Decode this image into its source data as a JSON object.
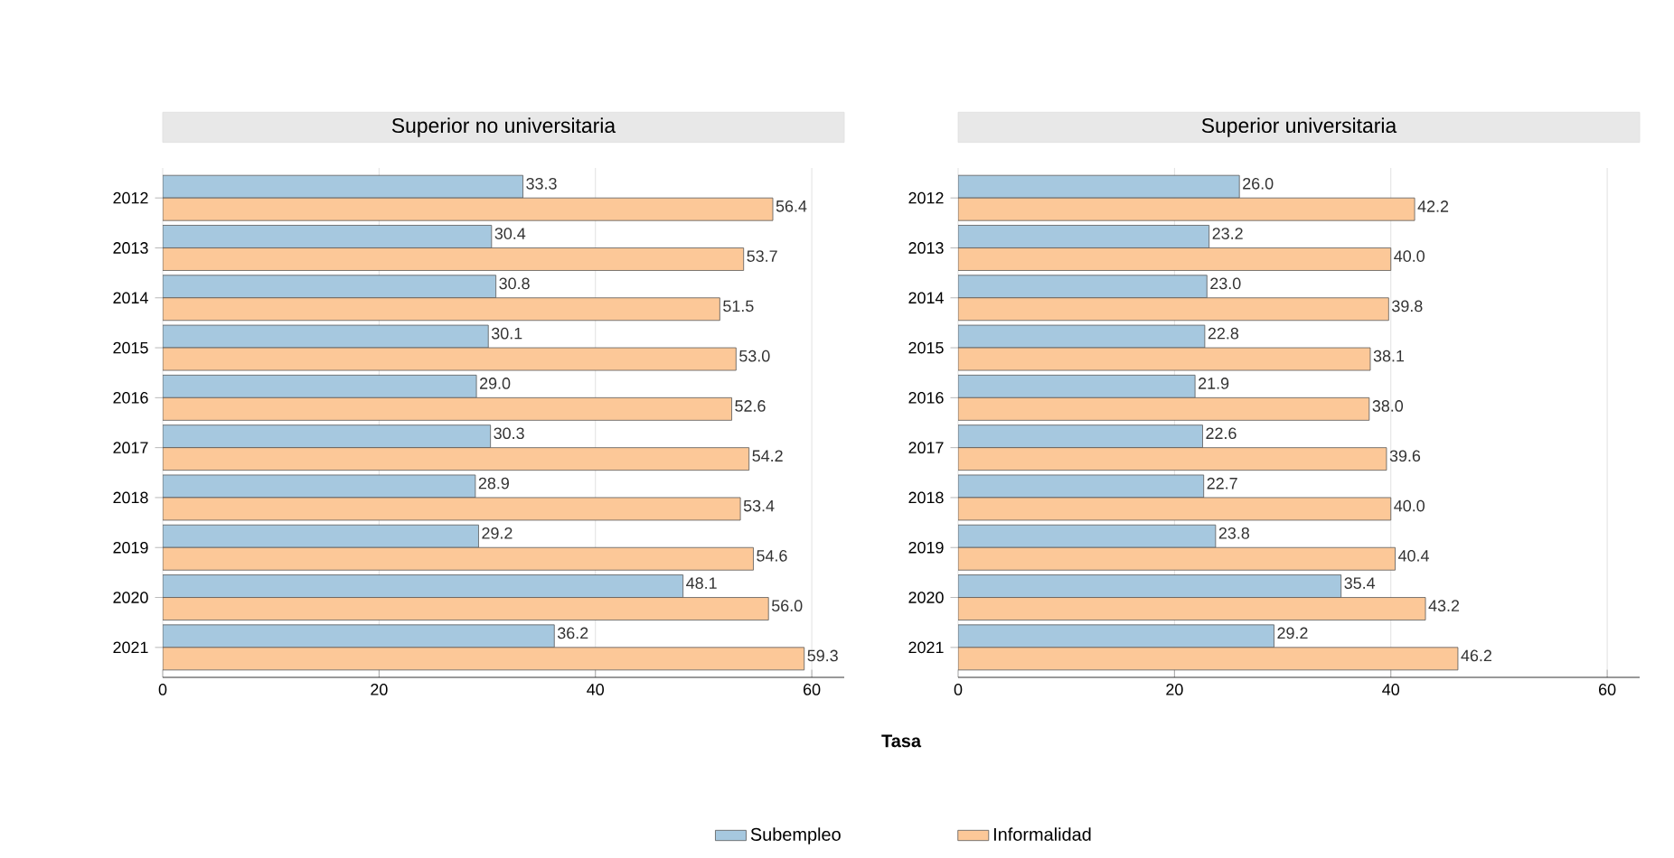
{
  "chart_data": [
    {
      "type": "bar",
      "orientation": "horizontal",
      "title": "Superior no universitaria",
      "xlabel": "Tasa",
      "legend": "bottom",
      "grid": "x",
      "xlim": [
        0,
        63
      ],
      "xticks": [
        0,
        20,
        40,
        60
      ],
      "categories": [
        "2012",
        "2013",
        "2014",
        "2015",
        "2016",
        "2017",
        "2018",
        "2019",
        "2020",
        "2021"
      ],
      "series": [
        {
          "name": "Subempleo",
          "color": "#a6c8df",
          "values": [
            33.3,
            30.4,
            30.8,
            30.1,
            29.0,
            30.3,
            28.9,
            29.2,
            48.1,
            36.2
          ],
          "value_labels": [
            "33.3",
            "30.4",
            "30.8",
            "30.1",
            "29.0",
            "30.3",
            "28.9",
            "29.2",
            "48.1",
            "36.2"
          ]
        },
        {
          "color": "#fcc898",
          "values": [
            56.4,
            53.7,
            51.5,
            53.0,
            52.6,
            54.2,
            53.4,
            54.6,
            56.0,
            59.3
          ],
          "value_labels": [
            "56.4",
            "53.7",
            "51.5",
            "53.0",
            "52.6",
            "54.2",
            "53.4",
            "54.6",
            "56.0",
            "59.3"
          ]
        }
      ]
    },
    {
      "type": "bar",
      "orientation": "horizontal",
      "title": "Superior universitaria",
      "legend": "bottom",
      "grid": "x",
      "xlim": [
        0,
        63
      ],
      "xticks": [
        0,
        20,
        40,
        60
      ],
      "categories": [
        "2012",
        "2013",
        "2014",
        "2015",
        "2016",
        "2017",
        "2018",
        "2019",
        "2020",
        "2021"
      ],
      "series": [
        {
          "color": "#a6c8df",
          "values": [
            26.0,
            23.2,
            23.0,
            22.8,
            21.9,
            22.6,
            22.7,
            23.8,
            35.4,
            29.2
          ],
          "value_labels": [
            "26.0",
            "23.2",
            "23.0",
            "22.8",
            "21.9",
            "22.6",
            "22.7",
            "23.8",
            "35.4",
            "29.2"
          ]
        },
        {
          "name": "Informalidad",
          "color": "#fcc898",
          "values": [
            42.2,
            40.0,
            39.8,
            38.1,
            38.0,
            39.6,
            40.0,
            40.4,
            43.2,
            46.2
          ],
          "value_labels": [
            "42.2",
            "40.0",
            "39.8",
            "38.1",
            "38.0",
            "39.6",
            "40.0",
            "40.4",
            "43.2",
            "46.2"
          ]
        }
      ]
    }
  ]
}
